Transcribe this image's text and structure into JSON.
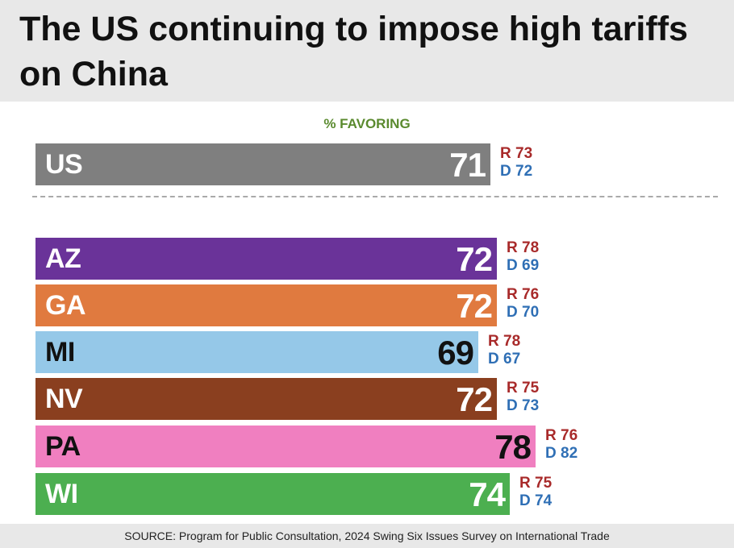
{
  "title": "The US continuing to impose high tariffs on China",
  "subtitle": "% FAVORING",
  "source": "SOURCE: Program for Public Consultation, 2024 Swing Six Issues Survey on International Trade",
  "chart_data": {
    "type": "bar",
    "orientation": "horizontal",
    "title": "The US continuing to impose high tariffs on China",
    "subtitle": "% FAVORING",
    "categories": [
      "US",
      "AZ",
      "GA",
      "MI",
      "NV",
      "PA",
      "WI"
    ],
    "values": [
      71,
      72,
      72,
      69,
      72,
      78,
      74
    ],
    "value_labels": [
      "71",
      "72",
      "72",
      "69",
      "72",
      "78",
      "74"
    ],
    "republican": [
      73,
      78,
      76,
      78,
      75,
      76,
      75
    ],
    "democrat": [
      72,
      69,
      70,
      67,
      73,
      82,
      74
    ],
    "republican_labels": [
      "R 73",
      "R 78",
      "R 76",
      "R 78",
      "R 75",
      "R 76",
      "R 75"
    ],
    "democrat_labels": [
      "D 72",
      "D 69",
      "D 70",
      "D 67",
      "D 73",
      "D 82",
      "D 74"
    ],
    "colors": [
      "#7f7f7f",
      "#6a3399",
      "#e07a3f",
      "#95c8e8",
      "#8a3f1f",
      "#f07fc0",
      "#4caf50"
    ],
    "xlim": [
      0,
      100
    ],
    "grid": false,
    "legend": "none",
    "party_colors": {
      "R": "#a82a2a",
      "D": "#2f6fb5"
    }
  }
}
